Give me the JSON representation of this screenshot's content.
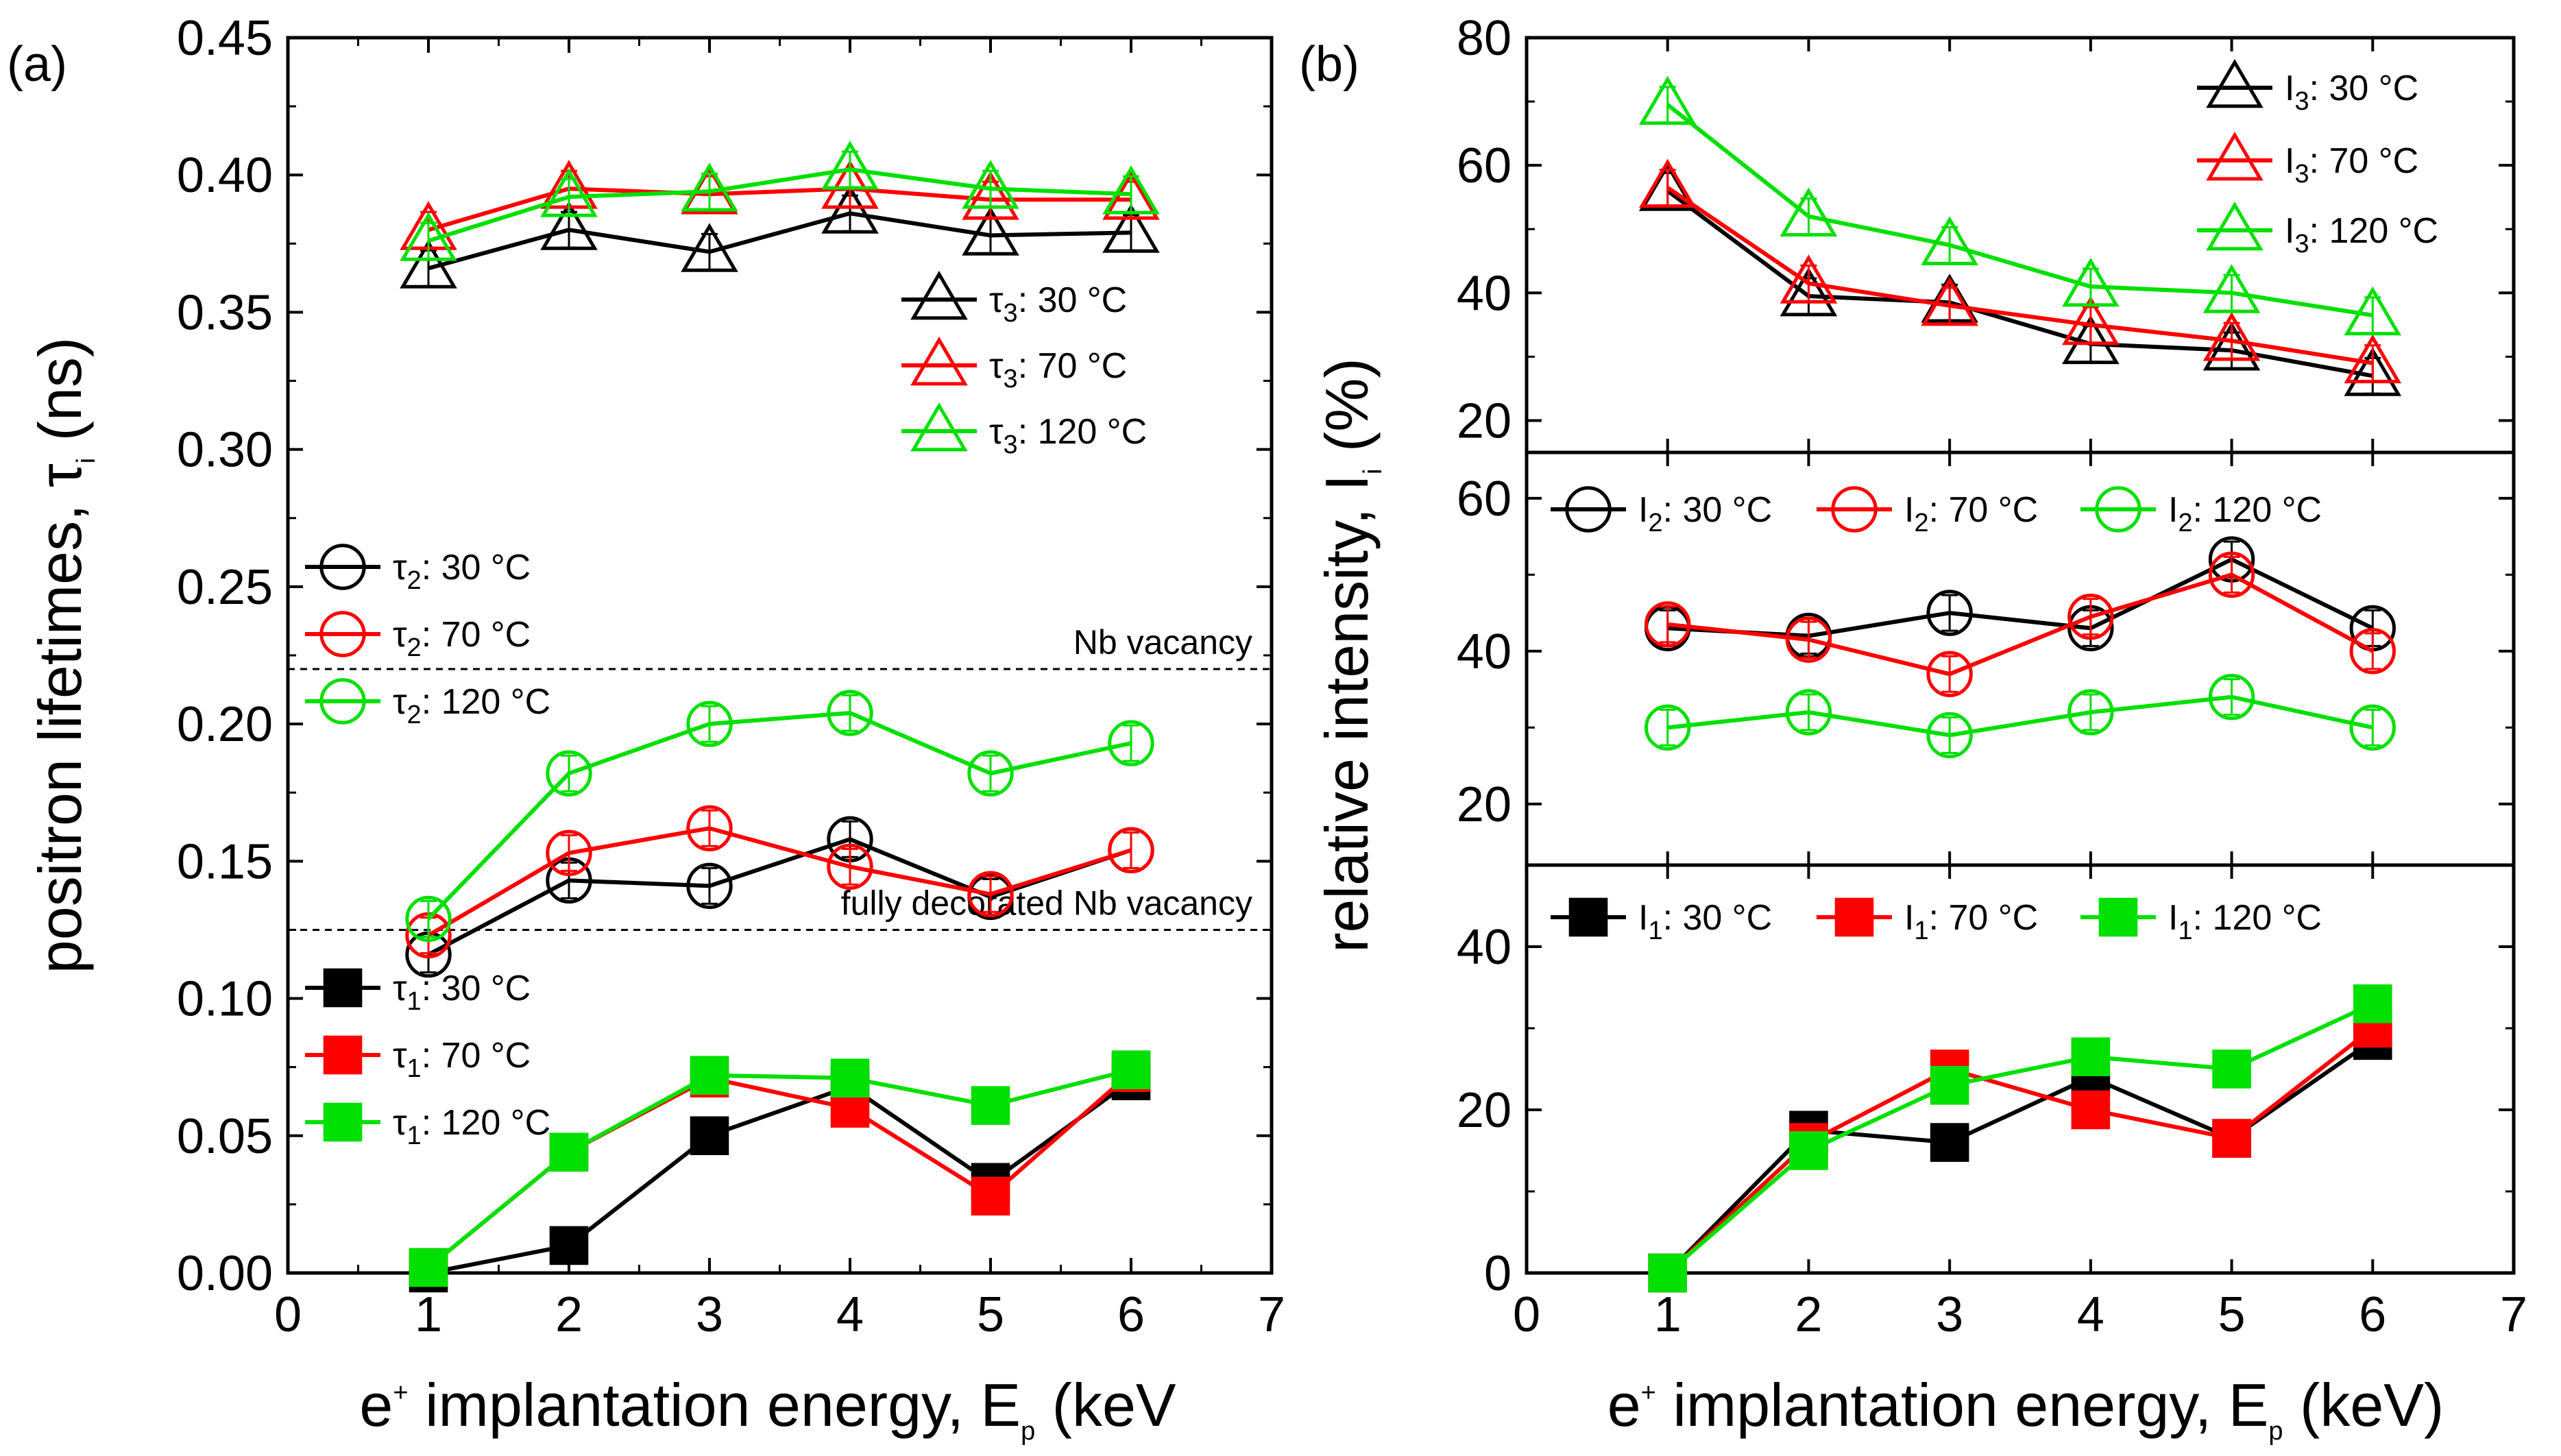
{
  "chart_data": [
    {
      "type": "line",
      "panel_label": "(a)",
      "xlabel": {
        "prefix": "e",
        "sup": "+",
        "text": " implantation energy, E",
        "sub": "p",
        "unit": " (keV"
      },
      "ylabel": {
        "text": "positron lifetimes, τ",
        "sub": "i",
        "unit": " (ns)"
      },
      "xlim": [
        0,
        7
      ],
      "ylim": [
        0.0,
        0.45
      ],
      "xticks": [
        "0",
        "1",
        "2",
        "3",
        "4",
        "5",
        "6",
        "7"
      ],
      "yticks": [
        "0.00",
        "0.05",
        "0.10",
        "0.15",
        "0.20",
        "0.25",
        "0.30",
        "0.35",
        "0.40",
        "0.45"
      ],
      "x": [
        1,
        2,
        3,
        4,
        5,
        6
      ],
      "reference_lines": [
        {
          "y": 0.22,
          "label": "Nb vacancy"
        },
        {
          "y": 0.125,
          "label": "fully decorated Nb vacancy"
        }
      ],
      "series": [
        {
          "name": "τ3: 30 °C",
          "sym": "τ",
          "sub": "3",
          "temp": ": 30 °C",
          "color": "#000000",
          "marker": "triangle",
          "values": [
            0.366,
            0.38,
            0.372,
            0.386,
            0.378,
            0.379
          ]
        },
        {
          "name": "τ3: 70 °C",
          "sym": "τ",
          "sub": "3",
          "temp": ": 70 °C",
          "color": "#ff0000",
          "marker": "triangle",
          "values": [
            0.38,
            0.395,
            0.393,
            0.395,
            0.391,
            0.391
          ]
        },
        {
          "name": "τ3: 120 °C",
          "sym": "τ",
          "sub": "3",
          "temp": ": 120 °C",
          "color": "#00e000",
          "marker": "triangle",
          "values": [
            0.376,
            0.392,
            0.394,
            0.402,
            0.395,
            0.393
          ]
        },
        {
          "name": "τ2: 30 °C",
          "sym": "τ",
          "sub": "2",
          "temp": ": 30 °C",
          "color": "#000000",
          "marker": "circle",
          "values": [
            0.116,
            0.143,
            0.141,
            0.158,
            0.137,
            0.154
          ]
        },
        {
          "name": "τ2: 70 °C",
          "sym": "τ",
          "sub": "2",
          "temp": ": 70 °C",
          "color": "#ff0000",
          "marker": "circle",
          "values": [
            0.123,
            0.153,
            0.162,
            0.148,
            0.138,
            0.154
          ]
        },
        {
          "name": "τ2: 120 °C",
          "sym": "τ",
          "sub": "2",
          "temp": ": 120 °C",
          "color": "#00e000",
          "marker": "circle",
          "values": [
            0.129,
            0.182,
            0.2,
            0.204,
            0.182,
            0.193
          ]
        },
        {
          "name": "τ1: 30 °C",
          "sym": "τ",
          "sub": "1",
          "temp": ": 30 °C",
          "color": "#000000",
          "marker": "square",
          "values": [
            0.0,
            0.01,
            0.05,
            0.068,
            0.033,
            0.07
          ]
        },
        {
          "name": "τ1: 70 °C",
          "sym": "τ",
          "sub": "1",
          "temp": ": 70 °C",
          "color": "#ff0000",
          "marker": "square",
          "values": [
            0.002,
            0.044,
            0.071,
            0.06,
            0.028,
            0.073
          ]
        },
        {
          "name": "τ1: 120 °C",
          "sym": "τ",
          "sub": "1",
          "temp": ": 120 °C",
          "color": "#00e000",
          "marker": "square",
          "values": [
            0.002,
            0.044,
            0.072,
            0.071,
            0.061,
            0.074
          ]
        }
      ]
    },
    {
      "type": "line",
      "panel_label": "(b)",
      "xlabel": {
        "prefix": "e",
        "sup": "+",
        "text": " implantation energy, E",
        "sub": "p",
        "unit": " (keV)"
      },
      "ylabel": {
        "text": "relative intensity, I",
        "sub": "i",
        "unit": " (%)"
      },
      "xlim": [
        0,
        7
      ],
      "xticks": [
        "0",
        "1",
        "2",
        "3",
        "4",
        "5",
        "6",
        "7"
      ],
      "x": [
        1,
        2,
        3,
        4,
        5,
        6
      ],
      "subplots": [
        {
          "ylim": [
            15,
            80
          ],
          "yticks": [
            "20",
            "40",
            "60",
            "80"
          ],
          "series": [
            {
              "name": "I3: 30 °C",
              "sym": "I",
              "sub": "3",
              "temp": ": 30 °C",
              "color": "#000000",
              "marker": "triangle",
              "values": [
                56,
                39.5,
                38.5,
                32,
                31,
                27
              ]
            },
            {
              "name": "I3: 70 °C",
              "sym": "I",
              "sub": "3",
              "temp": ": 70 °C",
              "color": "#ff0000",
              "marker": "triangle",
              "values": [
                56.5,
                41.5,
                38,
                35,
                32.5,
                29
              ]
            },
            {
              "name": "I3: 120 °C",
              "sym": "I",
              "sub": "3",
              "temp": ": 120 °C",
              "color": "#00e000",
              "marker": "triangle",
              "values": [
                69.5,
                52,
                47.5,
                41,
                40,
                36.5
              ]
            }
          ]
        },
        {
          "ylim": [
            12,
            66
          ],
          "yticks": [
            "20",
            "40",
            "60"
          ],
          "series": [
            {
              "name": "I2: 30 °C",
              "sym": "I",
              "sub": "2",
              "temp": ": 30 °C",
              "color": "#000000",
              "marker": "circle",
              "values": [
                43,
                42,
                45,
                43,
                52,
                43
              ]
            },
            {
              "name": "I2: 70 °C",
              "sym": "I",
              "sub": "2",
              "temp": ": 70 °C",
              "color": "#ff0000",
              "marker": "circle",
              "values": [
                43.5,
                41.5,
                37,
                44.5,
                50,
                40
              ]
            },
            {
              "name": "I2: 120 °C",
              "sym": "I",
              "sub": "2",
              "temp": ": 120 °C",
              "color": "#00e000",
              "marker": "circle",
              "values": [
                30,
                32,
                29,
                32,
                34,
                30
              ]
            }
          ]
        },
        {
          "ylim": [
            0,
            50
          ],
          "yticks": [
            "0",
            "20",
            "40"
          ],
          "series": [
            {
              "name": "I1: 30 °C",
              "sym": "I",
              "sub": "1",
              "temp": ": 30 °C",
              "color": "#000000",
              "marker": "square",
              "values": [
                0,
                17.5,
                16,
                24,
                16.5,
                28.5
              ]
            },
            {
              "name": "I1: 70 °C",
              "sym": "I",
              "sub": "1",
              "temp": ": 70 °C",
              "color": "#ff0000",
              "marker": "square",
              "values": [
                0,
                16,
                25,
                20,
                16.5,
                30
              ]
            },
            {
              "name": "I1: 120 °C",
              "sym": "I",
              "sub": "1",
              "temp": ": 120 °C",
              "color": "#00e000",
              "marker": "square",
              "values": [
                0,
                15,
                23,
                26.5,
                25,
                33
              ]
            }
          ]
        }
      ]
    }
  ]
}
